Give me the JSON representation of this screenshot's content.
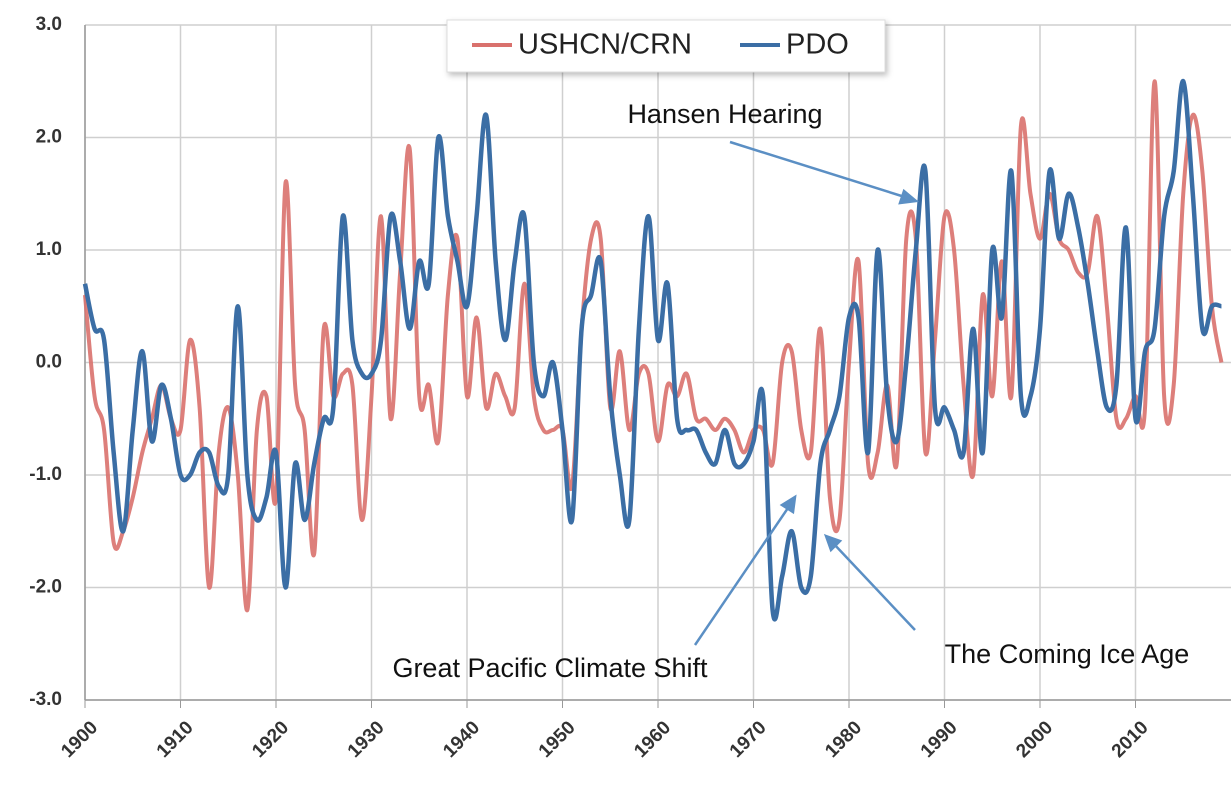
{
  "chart_data": {
    "type": "line",
    "x": [
      1900,
      1901,
      1902,
      1903,
      1904,
      1905,
      1906,
      1907,
      1908,
      1909,
      1910,
      1911,
      1912,
      1913,
      1914,
      1915,
      1916,
      1917,
      1918,
      1919,
      1920,
      1921,
      1922,
      1923,
      1924,
      1925,
      1926,
      1927,
      1928,
      1929,
      1930,
      1931,
      1932,
      1933,
      1934,
      1935,
      1936,
      1937,
      1938,
      1939,
      1940,
      1941,
      1942,
      1943,
      1944,
      1945,
      1946,
      1947,
      1948,
      1949,
      1950,
      1951,
      1952,
      1953,
      1954,
      1955,
      1956,
      1957,
      1958,
      1959,
      1960,
      1961,
      1962,
      1963,
      1964,
      1965,
      1966,
      1967,
      1968,
      1969,
      1970,
      1971,
      1972,
      1973,
      1974,
      1975,
      1976,
      1977,
      1978,
      1979,
      1980,
      1981,
      1982,
      1983,
      1984,
      1985,
      1986,
      1987,
      1988,
      1989,
      1990,
      1991,
      1992,
      1993,
      1994,
      1995,
      1996,
      1997,
      1998,
      1999,
      2000,
      2001,
      2002,
      2003,
      2004,
      2005,
      2006,
      2007,
      2008,
      2009,
      2010,
      2011,
      2012,
      2013,
      2014,
      2015,
      2016,
      2017,
      2018,
      2019
    ],
    "series": [
      {
        "name": "USHCN/CRN",
        "color": "#d9716d",
        "values": [
          0.6,
          -0.3,
          -0.6,
          -1.6,
          -1.5,
          -1.2,
          -0.8,
          -0.5,
          -0.2,
          -0.5,
          -0.6,
          0.2,
          -0.4,
          -2.0,
          -0.8,
          -0.4,
          -1.0,
          -2.2,
          -0.6,
          -0.3,
          -1.2,
          1.6,
          -0.2,
          -0.6,
          -1.7,
          0.3,
          -0.3,
          -0.1,
          -0.2,
          -1.4,
          -0.3,
          1.3,
          -0.5,
          0.8,
          1.9,
          -0.3,
          -0.2,
          -0.7,
          0.6,
          1.1,
          -0.3,
          0.4,
          -0.4,
          -0.1,
          -0.3,
          -0.4,
          0.7,
          -0.3,
          -0.6,
          -0.6,
          -0.6,
          -1.1,
          0.3,
          1.1,
          1.1,
          -0.4,
          0.1,
          -0.6,
          -0.1,
          -0.1,
          -0.7,
          -0.2,
          -0.3,
          -0.1,
          -0.5,
          -0.5,
          -0.6,
          -0.5,
          -0.6,
          -0.8,
          -0.6,
          -0.6,
          -0.9,
          0.0,
          0.1,
          -0.6,
          -0.8,
          0.3,
          -1.2,
          -1.4,
          0.0,
          0.9,
          -0.9,
          -0.8,
          -0.2,
          -0.9,
          1.1,
          1.1,
          -0.8,
          0.2,
          1.3,
          1.0,
          -0.2,
          -1.0,
          0.6,
          -0.3,
          0.9,
          -0.3,
          2.1,
          1.5,
          1.1,
          1.5,
          1.1,
          1.0,
          0.8,
          0.8,
          1.3,
          0.5,
          -0.5,
          -0.5,
          -0.3,
          -0.4,
          2.5,
          -0.3,
          -0.2,
          1.5,
          2.2,
          1.7,
          0.5,
          0.0
        ]
      },
      {
        "name": "PDO",
        "color": "#3b6ea5",
        "values": [
          0.7,
          0.3,
          0.2,
          -0.8,
          -1.5,
          -0.6,
          0.1,
          -0.7,
          -0.2,
          -0.5,
          -1.0,
          -1.0,
          -0.8,
          -0.8,
          -1.1,
          -1.0,
          0.5,
          -1.0,
          -1.4,
          -1.2,
          -0.8,
          -2.0,
          -0.9,
          -1.4,
          -0.9,
          -0.5,
          -0.4,
          1.3,
          0.2,
          -0.1,
          -0.1,
          0.2,
          1.3,
          0.9,
          0.3,
          0.9,
          0.7,
          2.0,
          1.3,
          0.9,
          0.5,
          1.3,
          2.2,
          0.9,
          0.2,
          0.9,
          1.3,
          0.0,
          -0.3,
          0.0,
          -0.6,
          -1.4,
          0.3,
          0.6,
          0.9,
          -0.3,
          -1.0,
          -1.4,
          0.3,
          1.3,
          0.2,
          0.7,
          -0.5,
          -0.6,
          -0.6,
          -0.8,
          -0.9,
          -0.6,
          -0.9,
          -0.9,
          -0.7,
          -0.3,
          -2.2,
          -1.9,
          -1.5,
          -2.0,
          -1.9,
          -0.9,
          -0.6,
          -0.3,
          0.4,
          0.4,
          -0.8,
          1.0,
          -0.3,
          -0.7,
          0.0,
          1.0,
          1.7,
          -0.4,
          -0.4,
          -0.6,
          -0.8,
          0.3,
          -0.8,
          1.0,
          0.4,
          1.7,
          -0.3,
          -0.3,
          0.3,
          1.7,
          1.1,
          1.5,
          1.2,
          0.7,
          0.1,
          -0.4,
          -0.2,
          1.2,
          -0.5,
          0.1,
          0.3,
          1.3,
          1.7,
          2.5,
          1.5,
          0.3,
          0.5,
          0.5
        ]
      }
    ],
    "xlim": [
      1900,
      2020
    ],
    "xticks": [
      1900,
      1910,
      1920,
      1930,
      1940,
      1950,
      1960,
      1970,
      1980,
      1990,
      2000,
      2010
    ],
    "ylim": [
      -3,
      3
    ],
    "yticks": [
      {
        "value": -3,
        "label": "-3.0"
      },
      {
        "value": -2,
        "label": "-2.0"
      },
      {
        "value": -1,
        "label": "-1.0"
      },
      {
        "value": 0,
        "label": "0.0"
      },
      {
        "value": 1,
        "label": "1.0"
      },
      {
        "value": 2,
        "label": "2.0"
      },
      {
        "value": 3,
        "label": "3.0"
      }
    ],
    "grid": true,
    "annotations": [
      "Hansen Hearing",
      "Great Pacific Climate Shift",
      "The Coming Ice Age"
    ]
  }
}
